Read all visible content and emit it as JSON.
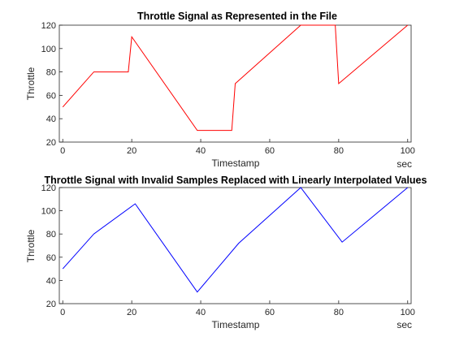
{
  "chart_data": [
    {
      "type": "line",
      "title": "Throttle Signal as Represented in the File",
      "xlabel": "Timestamp",
      "ylabel": "Throttle",
      "x_unit_label": "sec",
      "xlim": [
        -1,
        101
      ],
      "ylim": [
        20,
        120
      ],
      "xticks": [
        0,
        20,
        40,
        60,
        80,
        100
      ],
      "yticks": [
        20,
        40,
        60,
        80,
        100,
        120
      ],
      "grid": false,
      "series": [
        {
          "color": "#ff0000",
          "x": [
            0,
            9,
            19,
            20,
            39,
            49,
            50,
            69,
            79,
            80,
            100
          ],
          "y": [
            50,
            80,
            80,
            110,
            30,
            30,
            70,
            120,
            120,
            70,
            120
          ]
        }
      ]
    },
    {
      "type": "line",
      "title": "Throttle Signal with Invalid Samples Replaced with Linearly Interpolated Values",
      "xlabel": "Timestamp",
      "ylabel": "Throttle",
      "x_unit_label": "sec",
      "xlim": [
        -1,
        101
      ],
      "ylim": [
        20,
        120
      ],
      "xticks": [
        0,
        20,
        40,
        60,
        80,
        100
      ],
      "yticks": [
        20,
        40,
        60,
        80,
        100,
        120
      ],
      "grid": false,
      "series": [
        {
          "color": "#0000ff",
          "x": [
            0,
            9,
            21,
            39,
            51,
            69,
            81,
            100
          ],
          "y": [
            50,
            80,
            106,
            30,
            72,
            120,
            73,
            120
          ]
        }
      ]
    }
  ]
}
